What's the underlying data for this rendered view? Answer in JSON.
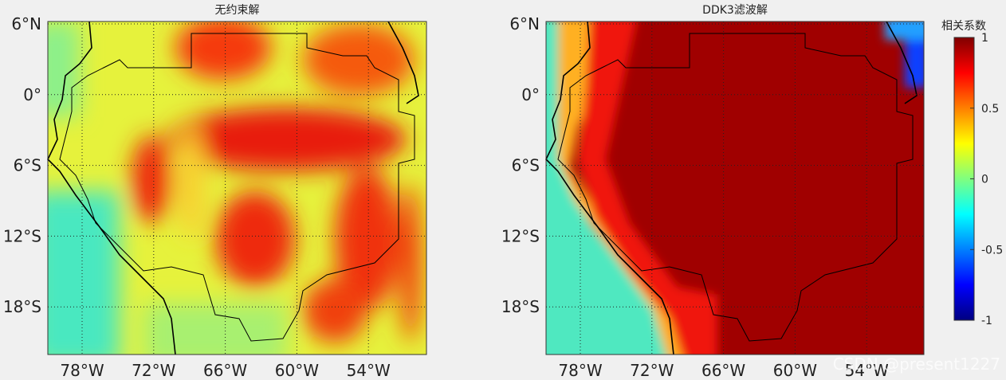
{
  "panels": [
    {
      "title": "无约束解",
      "lat_ticks": [
        "6°N",
        "0°",
        "6°S",
        "12°S",
        "18°S"
      ],
      "lon_ticks": [
        "78°W",
        "72°W",
        "66°W",
        "60°W",
        "54°W"
      ]
    },
    {
      "title": "DDK3滤波解",
      "lat_ticks": [
        "6°N",
        "0°",
        "6°S",
        "12°S",
        "18°S"
      ],
      "lon_ticks": [
        "78°W",
        "72°W",
        "66°W",
        "60°W",
        "54°W"
      ]
    }
  ],
  "colorbar": {
    "label": "相关系数",
    "ticks": [
      1,
      0.5,
      0,
      -0.5,
      -1
    ]
  },
  "watermark": "CSDN @present1227"
}
